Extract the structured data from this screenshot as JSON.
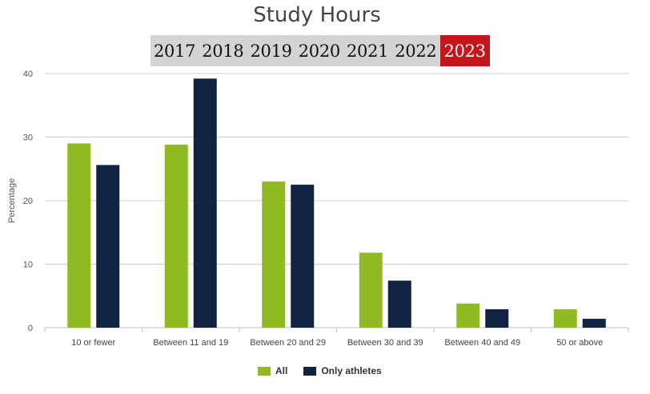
{
  "header": {
    "title": "Study Hours"
  },
  "years": [
    "2017",
    "2018",
    "2019",
    "2020",
    "2021",
    "2022",
    "2023"
  ],
  "selected_year": "2023",
  "colors": {
    "all": "#8fba23",
    "athletes": "#102340",
    "active_tab": "#c4161c",
    "grid": "#cccccc"
  },
  "legend": [
    {
      "label": "All",
      "color": "#8fba23"
    },
    {
      "label": "Only athletes",
      "color": "#102340"
    }
  ],
  "chart_data": {
    "type": "bar",
    "title": "Study Hours",
    "xlabel": "",
    "ylabel": "Percentage",
    "ylim": [
      0,
      40
    ],
    "yticks": [
      0,
      10,
      20,
      30,
      40
    ],
    "grid": true,
    "legend_position": "bottom",
    "categories": [
      "10 or fewer",
      "Between 11 and 19",
      "Between 20 and 29",
      "Between 30 and 39",
      "Between 40 and 49",
      "50 or above"
    ],
    "series": [
      {
        "name": "All",
        "color": "#8fba23",
        "values": [
          29,
          28.8,
          23,
          11.8,
          3.8,
          2.9
        ]
      },
      {
        "name": "Only athletes",
        "color": "#102340",
        "values": [
          25.6,
          39.2,
          22.5,
          7.4,
          2.9,
          1.4
        ]
      }
    ]
  }
}
